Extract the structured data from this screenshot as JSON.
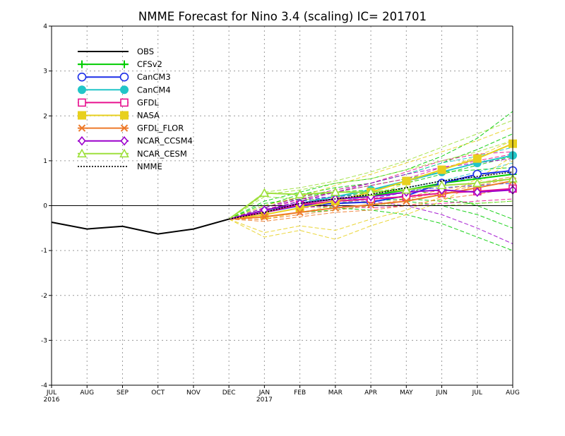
{
  "chart_data": {
    "type": "line",
    "title": "NMME Forecast for Nino 3.4 (scaling) IC= 201701",
    "x_categories": [
      "JUL",
      "AUG",
      "SEP",
      "OCT",
      "NOV",
      "DEC",
      "JAN",
      "FEB",
      "MAR",
      "APR",
      "MAY",
      "JUN",
      "JUL",
      "AUG"
    ],
    "x_year_labels": [
      {
        "index": 0,
        "text": "2016"
      },
      {
        "index": 6,
        "text": "2017"
      }
    ],
    "ylim": [
      -4,
      4
    ],
    "y_ticks": [
      -4,
      -3,
      -2,
      -1,
      0,
      1,
      2,
      3,
      4
    ],
    "grid": true,
    "legend_position": "top-left",
    "zero_line": true,
    "series": [
      {
        "name": "OBS",
        "color": "#000000",
        "marker": "none",
        "dash": "solid",
        "start_index": 0,
        "values": [
          -0.37,
          -0.52,
          -0.46,
          -0.63,
          -0.52,
          -0.3
        ]
      },
      {
        "name": "CFSv2",
        "color": "#00cc00",
        "marker": "plus",
        "dash": "solid",
        "start_index": 5,
        "values": [
          -0.3,
          -0.1,
          0.05,
          0.15,
          0.22,
          0.35,
          0.5,
          0.6,
          0.7
        ]
      },
      {
        "name": "CanCM3",
        "color": "#1d2fe8",
        "marker": "circle-open",
        "dash": "solid",
        "start_index": 5,
        "values": [
          -0.3,
          -0.15,
          0.0,
          0.05,
          0.08,
          0.22,
          0.5,
          0.7,
          0.78
        ]
      },
      {
        "name": "CanCM4",
        "color": "#22c5c8",
        "marker": "circle-filled",
        "dash": "solid",
        "start_index": 5,
        "values": [
          -0.3,
          -0.12,
          0.05,
          0.2,
          0.35,
          0.55,
          0.75,
          0.95,
          1.12
        ]
      },
      {
        "name": "GFDL",
        "color": "#e8118f",
        "marker": "square-open",
        "dash": "solid",
        "start_index": 5,
        "values": [
          -0.3,
          -0.15,
          0.02,
          0.1,
          0.15,
          0.2,
          0.28,
          0.32,
          0.38
        ]
      },
      {
        "name": "NASA",
        "color": "#e8d01e",
        "marker": "square-filled",
        "dash": "solid",
        "start_index": 5,
        "values": [
          -0.3,
          -0.2,
          -0.05,
          0.1,
          0.3,
          0.55,
          0.8,
          1.05,
          1.38
        ]
      },
      {
        "name": "GFDL_FLOR",
        "color": "#ee7a2a",
        "marker": "x",
        "dash": "solid",
        "start_index": 5,
        "values": [
          -0.3,
          -0.25,
          -0.15,
          -0.05,
          0.02,
          0.1,
          0.25,
          0.4,
          0.55
        ]
      },
      {
        "name": "NCAR_CCSM4",
        "color": "#9b00cc",
        "marker": "diamond-open",
        "dash": "solid",
        "start_index": 5,
        "values": [
          -0.3,
          -0.1,
          0.05,
          0.15,
          0.2,
          0.3,
          0.35,
          0.3,
          0.35
        ]
      },
      {
        "name": "NCAR_CESM",
        "color": "#9ee03c",
        "marker": "triangle-open",
        "dash": "solid",
        "start_index": 5,
        "values": [
          -0.3,
          0.28,
          0.25,
          0.3,
          0.3,
          0.35,
          0.45,
          0.5,
          0.6
        ]
      },
      {
        "name": "NMME",
        "color": "#000000",
        "marker": "none",
        "dash": "dotted",
        "start_index": 5,
        "values": [
          -0.3,
          -0.15,
          0.05,
          0.15,
          0.25,
          0.4,
          0.55,
          0.65,
          0.75
        ]
      }
    ],
    "ensemble_members": [
      {
        "color": "#00cc00",
        "values": [
          -0.3,
          -0.05,
          0.2,
          0.3,
          0.35,
          0.5,
          0.7,
          0.9,
          1.1
        ]
      },
      {
        "color": "#00cc00",
        "values": [
          -0.3,
          -0.2,
          -0.05,
          0.05,
          0.1,
          0.15,
          0.1,
          0.05,
          0.1
        ]
      },
      {
        "color": "#00cc00",
        "values": [
          -0.3,
          0.1,
          0.3,
          0.5,
          0.6,
          0.8,
          1.1,
          1.5,
          2.1
        ]
      },
      {
        "color": "#00cc00",
        "values": [
          -0.3,
          -0.15,
          0.0,
          -0.05,
          -0.1,
          -0.2,
          -0.4,
          -0.7,
          -1.0
        ]
      },
      {
        "color": "#00cc00",
        "values": [
          -0.3,
          0.05,
          0.15,
          0.3,
          0.45,
          0.6,
          0.75,
          0.8,
          0.85
        ]
      },
      {
        "color": "#00cc00",
        "values": [
          -0.3,
          -0.1,
          0.1,
          0.2,
          0.3,
          0.4,
          0.2,
          0.0,
          -0.3
        ]
      },
      {
        "color": "#00cc00",
        "values": [
          -0.3,
          0.0,
          0.25,
          0.4,
          0.5,
          0.7,
          0.95,
          1.25,
          1.6
        ]
      },
      {
        "color": "#00cc00",
        "values": [
          -0.3,
          -0.25,
          -0.15,
          -0.1,
          0.0,
          0.1,
          0.0,
          -0.2,
          -0.5
        ]
      },
      {
        "color": "#1d2fe8",
        "values": [
          -0.3,
          -0.2,
          -0.05,
          0.05,
          0.15,
          0.3,
          0.5,
          0.65,
          0.8
        ]
      },
      {
        "color": "#1d2fe8",
        "values": [
          -0.3,
          -0.1,
          0.1,
          0.2,
          0.25,
          0.35,
          0.4,
          0.45,
          0.5
        ]
      },
      {
        "color": "#22c5c8",
        "values": [
          -0.3,
          -0.05,
          0.2,
          0.35,
          0.5,
          0.7,
          0.95,
          1.1,
          1.3
        ]
      },
      {
        "color": "#22c5c8",
        "values": [
          -0.3,
          -0.2,
          -0.05,
          0.1,
          0.2,
          0.4,
          0.55,
          0.75,
          0.95
        ]
      },
      {
        "color": "#e8118f",
        "values": [
          -0.3,
          -0.1,
          0.15,
          0.3,
          0.45,
          0.6,
          0.85,
          1.0,
          1.15
        ]
      },
      {
        "color": "#e8118f",
        "values": [
          -0.3,
          -0.2,
          -0.05,
          0.0,
          -0.05,
          0.0,
          0.05,
          0.1,
          0.15
        ]
      },
      {
        "color": "#e8118f",
        "values": [
          -0.3,
          -0.05,
          0.2,
          0.35,
          0.5,
          0.75,
          1.0,
          1.15,
          1.2
        ]
      },
      {
        "color": "#e8d01e",
        "values": [
          -0.3,
          -0.6,
          -0.45,
          -0.55,
          -0.3,
          -0.1,
          0.2,
          0.6,
          1.1
        ]
      },
      {
        "color": "#e8d01e",
        "values": [
          -0.3,
          -0.7,
          -0.55,
          -0.75,
          -0.45,
          -0.2,
          0.1,
          0.5,
          1.0
        ]
      },
      {
        "color": "#e8d01e",
        "values": [
          -0.3,
          0.0,
          0.2,
          0.45,
          0.7,
          0.95,
          1.2,
          1.45,
          1.75
        ]
      },
      {
        "color": "#e8d01e",
        "values": [
          -0.3,
          -0.3,
          -0.15,
          0.0,
          0.2,
          0.5,
          0.8,
          1.1,
          1.45
        ]
      },
      {
        "color": "#ee7a2a",
        "values": [
          -0.3,
          -0.3,
          -0.2,
          -0.1,
          0.0,
          0.15,
          0.3,
          0.45,
          0.6
        ]
      },
      {
        "color": "#ee7a2a",
        "values": [
          -0.3,
          -0.15,
          0.0,
          0.05,
          0.1,
          0.2,
          0.35,
          0.5,
          0.65
        ]
      },
      {
        "color": "#ee7a2a",
        "values": [
          -0.3,
          -0.35,
          -0.25,
          -0.15,
          -0.1,
          0.0,
          0.15,
          0.25,
          0.4
        ]
      },
      {
        "color": "#9b00cc",
        "values": [
          -0.3,
          -0.05,
          0.15,
          0.2,
          0.1,
          0.0,
          -0.2,
          -0.5,
          -0.85
        ]
      },
      {
        "color": "#9b00cc",
        "values": [
          -0.3,
          -0.1,
          0.1,
          0.3,
          0.5,
          0.7,
          0.85,
          0.95,
          1.05
        ]
      },
      {
        "color": "#9ee03c",
        "values": [
          -0.3,
          0.25,
          0.35,
          0.5,
          0.6,
          0.8,
          1.0,
          1.2,
          1.45
        ]
      },
      {
        "color": "#9ee03c",
        "values": [
          -0.3,
          0.2,
          0.15,
          0.1,
          0.05,
          0.0,
          0.0,
          0.05,
          0.1
        ]
      },
      {
        "color": "#9ee03c",
        "values": [
          -0.3,
          0.3,
          0.4,
          0.55,
          0.75,
          1.0,
          1.3,
          1.6,
          1.9
        ]
      }
    ]
  }
}
